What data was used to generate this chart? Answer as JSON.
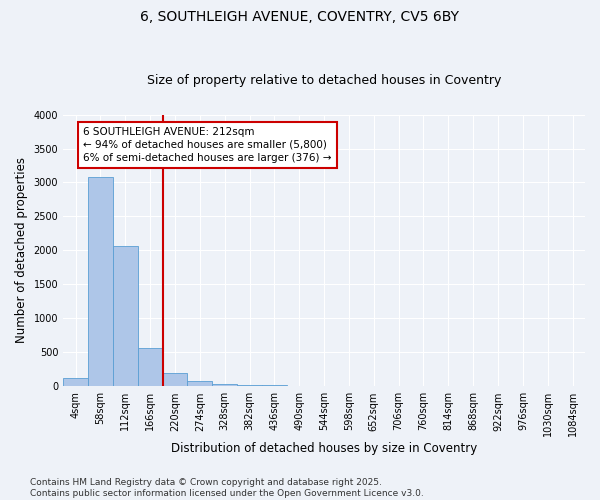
{
  "title_line1": "6, SOUTHLEIGH AVENUE, COVENTRY, CV5 6BY",
  "title_line2": "Size of property relative to detached houses in Coventry",
  "xlabel": "Distribution of detached houses by size in Coventry",
  "ylabel": "Number of detached properties",
  "categories": [
    "4sqm",
    "58sqm",
    "112sqm",
    "166sqm",
    "220sqm",
    "274sqm",
    "328sqm",
    "382sqm",
    "436sqm",
    "490sqm",
    "544sqm",
    "598sqm",
    "652sqm",
    "706sqm",
    "760sqm",
    "814sqm",
    "868sqm",
    "922sqm",
    "976sqm",
    "1030sqm",
    "1084sqm"
  ],
  "values": [
    130,
    3080,
    2060,
    570,
    200,
    80,
    40,
    25,
    15,
    0,
    0,
    0,
    0,
    0,
    0,
    0,
    0,
    0,
    0,
    0,
    0
  ],
  "bar_color": "#aec6e8",
  "bar_edge_color": "#5a9fd4",
  "vline_color": "#cc0000",
  "annotation_text": "6 SOUTHLEIGH AVENUE: 212sqm\n← 94% of detached houses are smaller (5,800)\n6% of semi-detached houses are larger (376) →",
  "annotation_box_color": "#cc0000",
  "ylim": [
    0,
    4000
  ],
  "yticks": [
    0,
    500,
    1000,
    1500,
    2000,
    2500,
    3000,
    3500,
    4000
  ],
  "background_color": "#eef2f8",
  "grid_color": "#ffffff",
  "footer_line1": "Contains HM Land Registry data © Crown copyright and database right 2025.",
  "footer_line2": "Contains public sector information licensed under the Open Government Licence v3.0.",
  "title_fontsize": 10,
  "subtitle_fontsize": 9,
  "axis_label_fontsize": 8.5,
  "tick_fontsize": 7,
  "annotation_fontsize": 7.5,
  "footer_fontsize": 6.5
}
